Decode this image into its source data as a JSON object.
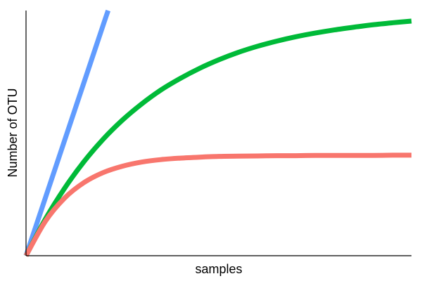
{
  "chart_data": {
    "type": "line",
    "title": "",
    "xlabel": "samples",
    "ylabel": "Number of OTU",
    "xlim": [
      0,
      100
    ],
    "ylim": [
      0,
      100
    ],
    "grid": false,
    "legend": "none",
    "x_ticks": [],
    "y_ticks": [],
    "series": [
      {
        "color": "#619CFF",
        "x": [
          0,
          5,
          10,
          15,
          20,
          21.3
        ],
        "y": [
          0,
          23.5,
          47,
          70.5,
          94,
          100
        ]
      },
      {
        "color": "#00BA38",
        "x": [
          0,
          5,
          10,
          15,
          20,
          25,
          30,
          35,
          40,
          45,
          50,
          55,
          60,
          65,
          70,
          75,
          80,
          85,
          90,
          95,
          100
        ],
        "y": [
          0,
          14.9,
          27.5,
          38.3,
          47.5,
          55.3,
          61.9,
          67.6,
          72.3,
          76.4,
          79.9,
          82.9,
          85.4,
          87.5,
          89.3,
          90.8,
          92.1,
          93.2,
          94.2,
          95.0,
          95.7
        ]
      },
      {
        "color": "#F8766D",
        "x": [
          0,
          5,
          10,
          15,
          20,
          25,
          30,
          35,
          40,
          45,
          50,
          55,
          60,
          65,
          70,
          75,
          80,
          85,
          90,
          95,
          100
        ],
        "y": [
          0,
          14.0,
          23.5,
          29.8,
          33.9,
          36.5,
          38.2,
          39.2,
          39.8,
          40.2,
          40.5,
          40.6,
          40.7,
          40.8,
          40.8,
          40.9,
          40.9,
          40.9,
          40.9,
          41.0,
          41.0
        ]
      }
    ]
  }
}
